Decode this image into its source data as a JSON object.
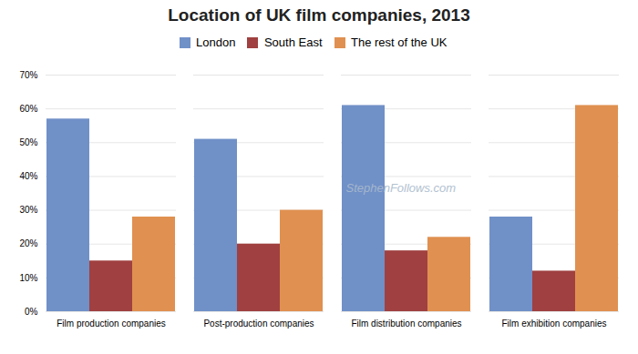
{
  "chart_data": {
    "type": "bar",
    "title": "Location of UK film companies, 2013",
    "categories": [
      "Film production companies",
      "Post-production companies",
      "Film distribution companies",
      "Film exhibition companies"
    ],
    "series": [
      {
        "name": "London",
        "color": "#7090C8",
        "values": [
          57,
          51,
          61,
          28
        ]
      },
      {
        "name": "South East",
        "color": "#A04040",
        "values": [
          15,
          20,
          18,
          12
        ]
      },
      {
        "name": "The rest of the UK",
        "color": "#E09050",
        "values": [
          28,
          30,
          22,
          61
        ]
      }
    ],
    "ylim": [
      0,
      70
    ],
    "yticks": [
      {
        "value": 0,
        "label": "0%"
      },
      {
        "value": 10,
        "label": "10%"
      },
      {
        "value": 20,
        "label": "20%"
      },
      {
        "value": 30,
        "label": "30%"
      },
      {
        "value": 40,
        "label": "40%"
      },
      {
        "value": 50,
        "label": "50%"
      },
      {
        "value": 60,
        "label": "60%"
      },
      {
        "value": 70,
        "label": "70%"
      }
    ],
    "grid": true,
    "legend": "top",
    "annotations": [
      "StephenFollows.com"
    ]
  }
}
